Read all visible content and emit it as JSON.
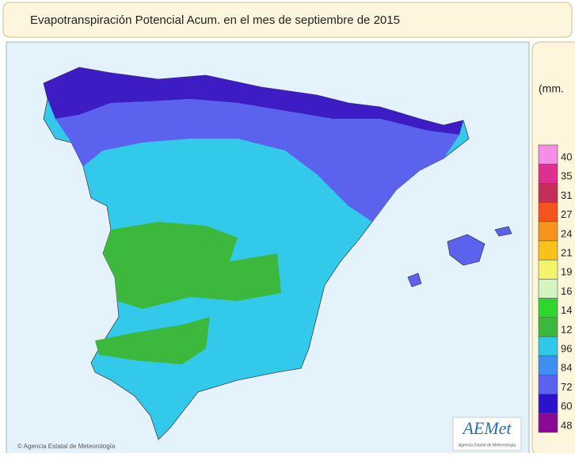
{
  "header": {
    "title": "Evapotranspiración Potencial Acum. en el mes de   septiembre de 2015"
  },
  "legend": {
    "unit": "(mm.",
    "items": [
      {
        "label": "40",
        "color": "#f58ee6"
      },
      {
        "label": "35",
        "color": "#e0308f"
      },
      {
        "label": "31",
        "color": "#c42d5a"
      },
      {
        "label": "27",
        "color": "#f4551e"
      },
      {
        "label": "24",
        "color": "#f7941d"
      },
      {
        "label": "21",
        "color": "#f8c21a"
      },
      {
        "label": "19",
        "color": "#f4f46a"
      },
      {
        "label": "16",
        "color": "#d4f5bf"
      },
      {
        "label": "14",
        "color": "#2ed62e"
      },
      {
        "label": "12",
        "color": "#3cb83c"
      },
      {
        "label": "96",
        "color": "#30c8e8"
      },
      {
        "label": "84",
        "color": "#3d8ff0"
      },
      {
        "label": "72",
        "color": "#5b62ee"
      },
      {
        "label": "60",
        "color": "#2a13c8"
      },
      {
        "label": "48",
        "color": "#8a0a96"
      }
    ]
  },
  "footer": {
    "copyright": "© Agencia Estatal de Meteorología",
    "logo": "AEMet",
    "logo_caption": "Agencia Estatal de Meteorología"
  }
}
